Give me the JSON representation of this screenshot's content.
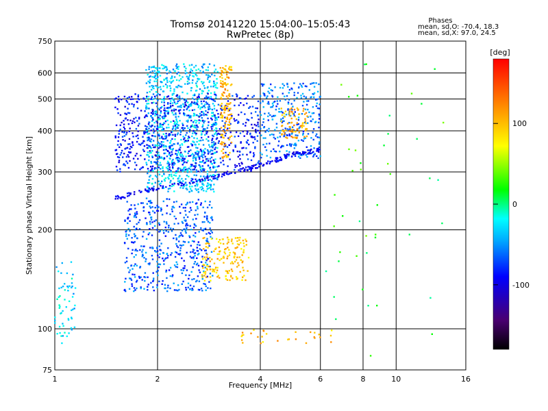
{
  "header": {
    "title_line1": "Tromsø 20141220 15:04:00–15:05:43",
    "title_line2": "RwPretec (8p)"
  },
  "phase_note": {
    "heading": "Phases",
    "line1": "mean, sd,O: -70.4, 18.3",
    "line2": "mean, sd,X:  97.0, 24.5"
  },
  "chart_data": {
    "type": "scatter",
    "title": "Tromsø 20141220 15:04:00–15:05:43",
    "subtitle": "RwPretec (8p)",
    "xlabel": "Frequency [MHz]",
    "ylabel": "Stationary phase Virtual Height [km]",
    "x_scale": "log",
    "y_scale": "log",
    "xlim": [
      1,
      16
    ],
    "ylim": [
      75,
      750
    ],
    "x_ticks": [
      1,
      2,
      4,
      6,
      8,
      10,
      16
    ],
    "y_ticks": [
      75,
      100,
      200,
      300,
      400,
      500,
      600,
      750
    ],
    "x_grid": [
      2,
      4,
      6,
      8,
      10
    ],
    "y_grid": [
      100,
      200,
      300,
      400,
      500,
      600
    ],
    "grid": true,
    "colorbar": {
      "label": "[deg]",
      "range": [
        -180,
        180
      ],
      "ticks": [
        100,
        0,
        -100
      ],
      "colormap": "rainbow (black-purple-blue-cyan-green-yellow-red)"
    },
    "clusters": [
      {
        "name": "low-freq cyan echoes",
        "f": [
          1.0,
          1.15
        ],
        "h": [
          90,
          160
        ],
        "phase": -30,
        "count": 60
      },
      {
        "name": "E/F1 lower band",
        "f": [
          1.6,
          2.9
        ],
        "h": [
          130,
          250
        ],
        "phase": -65,
        "count": 520
      },
      {
        "name": "warm lower band",
        "f": [
          2.7,
          3.7
        ],
        "h": [
          140,
          190
        ],
        "phase": 95,
        "count": 160
      },
      {
        "name": "F2 cyan block",
        "f": [
          1.85,
          3.0
        ],
        "h": [
          260,
          640
        ],
        "phase": -35,
        "count": 900
      },
      {
        "name": "F2 blue cloud",
        "f": [
          1.5,
          4.0
        ],
        "h": [
          300,
          520
        ],
        "phase": -85,
        "count": 700
      },
      {
        "name": "yellow column",
        "f": [
          3.05,
          3.3
        ],
        "h": [
          330,
          640
        ],
        "phase": 105,
        "count": 140
      },
      {
        "name": "F2 ray 4-6 MHz",
        "f": [
          4.0,
          6.0
        ],
        "h": [
          330,
          560
        ],
        "phase": -60,
        "count": 300
      },
      {
        "name": "yellow patch near 5 MHz",
        "f": [
          4.6,
          5.5
        ],
        "h": [
          380,
          470
        ],
        "phase": 110,
        "count": 80
      },
      {
        "name": "scattered high-freq",
        "f": [
          6.0,
          14.0
        ],
        "h": [
          80,
          650
        ],
        "phase": 20,
        "count": 45
      },
      {
        "name": "sparse low-height returns",
        "f": [
          3.5,
          6.5
        ],
        "h": [
          90,
          100
        ],
        "phase": 100,
        "count": 30
      }
    ],
    "trace_edge": {
      "name": "F-layer lower edge",
      "points": [
        [
          1.5,
          250
        ],
        [
          2.0,
          268
        ],
        [
          3.0,
          292
        ],
        [
          4.0,
          315
        ],
        [
          5.0,
          340
        ],
        [
          6.0,
          350
        ]
      ],
      "phase": -95
    }
  }
}
